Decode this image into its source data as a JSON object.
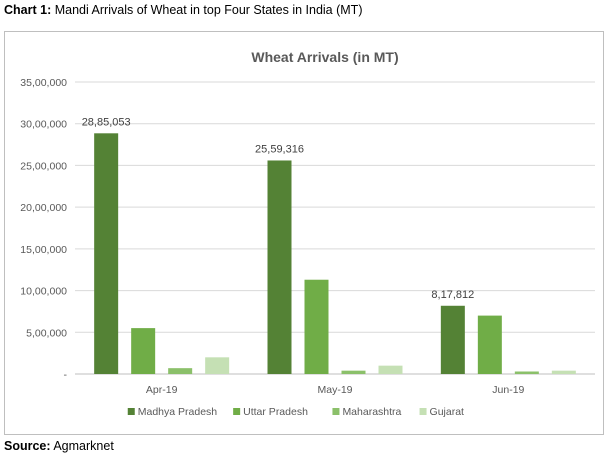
{
  "caption": {
    "prefix": "Chart 1:",
    "text": "Mandi Arrivals of Wheat in top Four States in India (MT)"
  },
  "source": {
    "prefix": "Source:",
    "text": "Agmarknet"
  },
  "chart_data": {
    "type": "bar",
    "title": "Wheat Arrivals (in MT)",
    "xlabel": "",
    "ylabel": "",
    "categories": [
      "Apr-19",
      "May-19",
      "Jun-19"
    ],
    "ylim": [
      0,
      3500000
    ],
    "yticks": [
      0,
      500000,
      1000000,
      1500000,
      2000000,
      2500000,
      3000000,
      3500000
    ],
    "ytick_labels": [
      "-",
      "5,00,000",
      "10,00,000",
      "15,00,000",
      "20,00,000",
      "25,00,000",
      "30,00,000",
      "35,00,000"
    ],
    "grid": true,
    "legend_position": "bottom",
    "series": [
      {
        "name": "Madhya Pradesh",
        "color": "#548235",
        "values": [
          2885053,
          2559316,
          817812
        ],
        "data_labels": [
          "28,85,053",
          "25,59,316",
          "8,17,812"
        ]
      },
      {
        "name": "Uttar Pradesh",
        "color": "#70ad47",
        "values": [
          550000,
          1130000,
          700000
        ]
      },
      {
        "name": "Maharashtra",
        "color": "#8bc06a",
        "values": [
          70000,
          40000,
          30000
        ]
      },
      {
        "name": "Gujarat",
        "color": "#c5e0b4",
        "values": [
          200000,
          100000,
          40000
        ]
      }
    ]
  }
}
